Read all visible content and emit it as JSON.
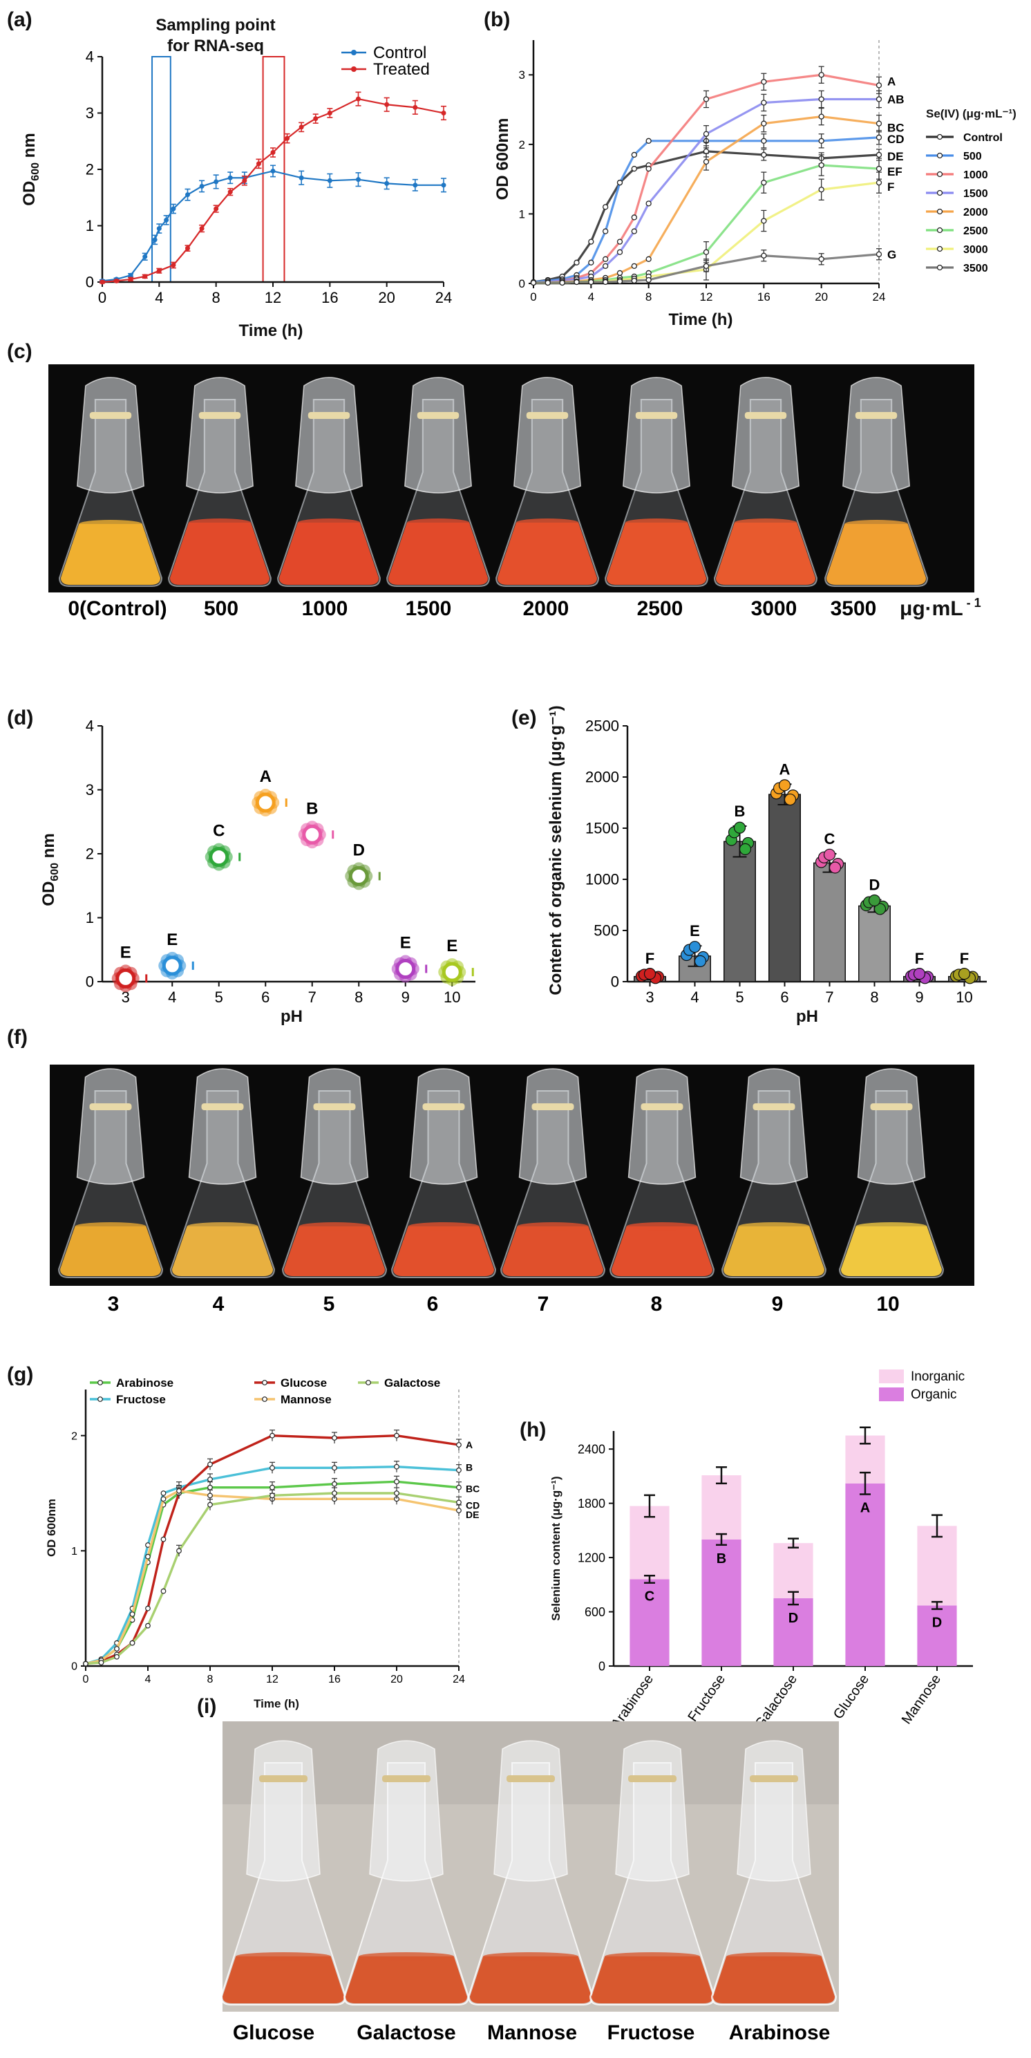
{
  "panels": {
    "a": "(a)",
    "b": "(b)",
    "c": "(c)",
    "d": "(d)",
    "e": "(e)",
    "f": "(f)",
    "g": "(g)",
    "h": "(h)",
    "i": "(i)"
  },
  "colors": {
    "control": "#1f77c4",
    "treated": "#d62728",
    "b_series": [
      "#333333",
      "#4a8ee8",
      "#f47a7a",
      "#8a8af0",
      "#f5a54a",
      "#7fe07f",
      "#f0f07a",
      "#777777"
    ],
    "g_series": [
      "#5cc84a",
      "#4ac0d8",
      "#c0221a",
      "#f5c470",
      "#a8d070"
    ],
    "bar_dark": "#555555",
    "bar_mid": "#777777",
    "bar_light": "#9a9a9a",
    "organic": "#da7ee0",
    "inorganic": "#f9d2ec",
    "d_points": [
      "#d02020",
      "#2a8fd8",
      "#2fa83a",
      "#f5a020",
      "#e85aa8",
      "#6a9a3a",
      "#b040c0",
      "#a8c820"
    ]
  },
  "chart_data": [
    {
      "id": "a",
      "type": "line",
      "title": "Sampling point for RNA-seq",
      "title_lines": [
        "Sampling point",
        "for RNA-seq"
      ],
      "xlabel": "Time (h)",
      "ylabel_main": "OD",
      "ylabel_sub": "600",
      "ylabel_tail": " nm",
      "xlim": [
        0,
        24
      ],
      "ylim": [
        0,
        4
      ],
      "xticks": [
        0,
        4,
        8,
        12,
        16,
        20,
        24
      ],
      "yticks": [
        0,
        1,
        2,
        3,
        4
      ],
      "highlight_windows": [
        [
          3.5,
          4.8
        ],
        [
          11.3,
          12.8
        ]
      ],
      "series": [
        {
          "name": "Control",
          "points": [
            [
              0,
              0.02
            ],
            [
              1,
              0.05
            ],
            [
              2,
              0.12
            ],
            [
              3,
              0.45
            ],
            [
              3.7,
              0.75
            ],
            [
              4,
              0.95
            ],
            [
              4.5,
              1.1
            ],
            [
              5,
              1.3
            ],
            [
              6,
              1.55
            ],
            [
              7,
              1.7
            ],
            [
              8,
              1.78
            ],
            [
              9,
              1.85
            ],
            [
              10,
              1.85
            ],
            [
              12,
              1.97
            ],
            [
              14,
              1.85
            ],
            [
              16,
              1.8
            ],
            [
              18,
              1.82
            ],
            [
              20,
              1.75
            ],
            [
              22,
              1.72
            ],
            [
              24,
              1.72
            ]
          ],
          "errors": [
            0.02,
            0.02,
            0.03,
            0.06,
            0.08,
            0.08,
            0.08,
            0.08,
            0.1,
            0.1,
            0.12,
            0.1,
            0.1,
            0.1,
            0.12,
            0.12,
            0.12,
            0.1,
            0.1,
            0.12
          ]
        },
        {
          "name": "Treated",
          "points": [
            [
              0,
              0.0
            ],
            [
              1,
              0.02
            ],
            [
              2,
              0.05
            ],
            [
              3,
              0.1
            ],
            [
              4,
              0.2
            ],
            [
              5,
              0.3
            ],
            [
              6,
              0.6
            ],
            [
              7,
              0.95
            ],
            [
              8,
              1.3
            ],
            [
              9,
              1.6
            ],
            [
              10,
              1.8
            ],
            [
              11,
              2.1
            ],
            [
              12,
              2.3
            ],
            [
              13,
              2.55
            ],
            [
              14,
              2.75
            ],
            [
              15,
              2.9
            ],
            [
              16,
              3.0
            ],
            [
              18,
              3.25
            ],
            [
              20,
              3.15
            ],
            [
              22,
              3.1
            ],
            [
              24,
              3.0
            ]
          ],
          "errors": [
            0.02,
            0.02,
            0.03,
            0.03,
            0.04,
            0.05,
            0.05,
            0.06,
            0.06,
            0.06,
            0.08,
            0.08,
            0.08,
            0.08,
            0.08,
            0.08,
            0.08,
            0.12,
            0.12,
            0.12,
            0.12
          ]
        }
      ]
    },
    {
      "id": "b",
      "type": "line",
      "xlabel": "Time (h)",
      "ylabel": "OD 600nm",
      "xlim": [
        0,
        24
      ],
      "ylim": [
        0,
        3.5
      ],
      "xticks": [
        0,
        4,
        8,
        12,
        16,
        20,
        24
      ],
      "yticks": [
        0,
        1,
        2,
        3
      ],
      "legend_title": "Se(IV)  (μg·mL⁻¹)",
      "x": [
        0,
        1,
        2,
        3,
        4,
        5,
        6,
        7,
        8,
        12,
        16,
        20,
        24
      ],
      "series": [
        {
          "name": "Control",
          "letter": "DE",
          "values": [
            0.02,
            0.05,
            0.1,
            0.3,
            0.6,
            1.1,
            1.45,
            1.65,
            1.7,
            1.9,
            1.85,
            1.8,
            1.85
          ],
          "err": 0.08
        },
        {
          "name": "500",
          "letter": "CD",
          "values": [
            0.02,
            0.04,
            0.06,
            0.12,
            0.3,
            0.75,
            1.45,
            1.85,
            2.05,
            2.05,
            2.05,
            2.05,
            2.1
          ],
          "err": 0.1
        },
        {
          "name": "1000",
          "letter": "A",
          "values": [
            0.01,
            0.02,
            0.04,
            0.08,
            0.15,
            0.35,
            0.6,
            0.95,
            1.65,
            2.65,
            2.9,
            3.0,
            2.85
          ],
          "err": 0.12
        },
        {
          "name": "1500",
          "letter": "AB",
          "values": [
            0.01,
            0.02,
            0.04,
            0.06,
            0.1,
            0.25,
            0.45,
            0.75,
            1.15,
            2.15,
            2.6,
            2.65,
            2.65
          ],
          "err": 0.12
        },
        {
          "name": "2000",
          "letter": "BC",
          "values": [
            0.01,
            0.01,
            0.02,
            0.03,
            0.05,
            0.08,
            0.15,
            0.25,
            0.35,
            1.75,
            2.3,
            2.4,
            2.3
          ],
          "err": 0.12
        },
        {
          "name": "2500",
          "letter": "EF",
          "values": [
            0.01,
            0.01,
            0.01,
            0.02,
            0.03,
            0.05,
            0.08,
            0.1,
            0.15,
            0.45,
            1.45,
            1.7,
            1.65
          ],
          "err": 0.15
        },
        {
          "name": "3000",
          "letter": "F",
          "values": [
            0.01,
            0.01,
            0.01,
            0.02,
            0.02,
            0.03,
            0.05,
            0.07,
            0.1,
            0.2,
            0.9,
            1.35,
            1.45
          ],
          "err": 0.15
        },
        {
          "name": "3500",
          "letter": "G",
          "values": [
            0.01,
            0.01,
            0.01,
            0.02,
            0.02,
            0.02,
            0.03,
            0.04,
            0.05,
            0.25,
            0.4,
            0.35,
            0.42
          ],
          "err": 0.08
        }
      ]
    },
    {
      "id": "d",
      "type": "scatter",
      "xlabel": "pH",
      "ylabel_main": "OD",
      "ylabel_sub": "600",
      "ylabel_tail": " nm",
      "xlim": [
        2.5,
        10.5
      ],
      "ylim": [
        0,
        4
      ],
      "xticks": [
        3,
        4,
        5,
        6,
        7,
        8,
        9,
        10
      ],
      "yticks": [
        0,
        1,
        2,
        3,
        4
      ],
      "points": [
        {
          "x": 3,
          "y": 0.05,
          "letter": "E"
        },
        {
          "x": 4,
          "y": 0.25,
          "letter": "E"
        },
        {
          "x": 5,
          "y": 1.95,
          "letter": "C"
        },
        {
          "x": 6,
          "y": 2.8,
          "letter": "A"
        },
        {
          "x": 7,
          "y": 2.3,
          "letter": "B"
        },
        {
          "x": 8,
          "y": 1.65,
          "letter": "D"
        },
        {
          "x": 9,
          "y": 0.2,
          "letter": "E"
        },
        {
          "x": 10,
          "y": 0.15,
          "letter": "E"
        }
      ]
    },
    {
      "id": "e",
      "type": "bar",
      "xlabel": "pH",
      "ylabel": "Content of organic selenium (μg·g⁻¹)",
      "ylim": [
        0,
        2500
      ],
      "yticks": [
        0,
        500,
        1000,
        1500,
        2000,
        2500
      ],
      "categories": [
        "3",
        "4",
        "5",
        "6",
        "7",
        "8",
        "9",
        "10"
      ],
      "values": [
        50,
        250,
        1370,
        1830,
        1160,
        740,
        50,
        50
      ],
      "errors": [
        30,
        100,
        150,
        100,
        90,
        60,
        30,
        30
      ],
      "letters": [
        "F",
        "E",
        "B",
        "A",
        "C",
        "D",
        "F",
        "F"
      ]
    },
    {
      "id": "g",
      "type": "line",
      "xlabel": "Time (h)",
      "ylabel": "OD 600nm",
      "xlim": [
        0,
        24
      ],
      "ylim": [
        0,
        2.4
      ],
      "xticks": [
        0,
        4,
        8,
        12,
        16,
        20,
        24
      ],
      "yticks": [
        0,
        1,
        2
      ],
      "x": [
        0,
        1,
        2,
        3,
        4,
        5,
        6,
        8,
        12,
        16,
        20,
        24
      ],
      "series": [
        {
          "name": "Arabinose",
          "letter": "BC",
          "values": [
            0.02,
            0.05,
            0.15,
            0.4,
            0.9,
            1.4,
            1.5,
            1.55,
            1.55,
            1.58,
            1.6,
            1.55
          ]
        },
        {
          "name": "Fructose",
          "letter": "B",
          "values": [
            0.02,
            0.06,
            0.2,
            0.5,
            1.05,
            1.5,
            1.55,
            1.62,
            1.72,
            1.72,
            1.73,
            1.7
          ]
        },
        {
          "name": "Glucose",
          "letter": "A",
          "values": [
            0.02,
            0.04,
            0.1,
            0.2,
            0.5,
            1.1,
            1.5,
            1.75,
            2.0,
            1.98,
            2.0,
            1.92
          ]
        },
        {
          "name": "Mannose",
          "letter": "DE",
          "values": [
            0.02,
            0.05,
            0.15,
            0.45,
            0.95,
            1.45,
            1.52,
            1.48,
            1.45,
            1.45,
            1.45,
            1.35
          ]
        },
        {
          "name": "Galactose",
          "letter": "CD",
          "values": [
            0.02,
            0.03,
            0.08,
            0.2,
            0.35,
            0.65,
            1.0,
            1.4,
            1.48,
            1.5,
            1.5,
            1.42
          ]
        }
      ],
      "legend_order": [
        "Arabinose",
        "Fructose",
        "Glucose",
        "Mannose",
        "Galactose"
      ]
    },
    {
      "id": "h",
      "type": "bar",
      "stacked": true,
      "ylabel": "Selenium content (μg·g⁻¹)",
      "ylim": [
        0,
        2600
      ],
      "yticks": [
        0,
        600,
        1200,
        1800,
        2400
      ],
      "categories": [
        "Arabinose",
        "Fructose",
        "Galactose",
        "Glucose",
        "Mannose"
      ],
      "series": [
        {
          "name": "Organic",
          "values": [
            960,
            1400,
            750,
            2020,
            670
          ],
          "errors": [
            40,
            60,
            70,
            120,
            40
          ]
        },
        {
          "name": "Inorganic",
          "values": [
            810,
            710,
            610,
            530,
            880
          ],
          "errors": [
            120,
            90,
            50,
            90,
            120
          ]
        }
      ],
      "letters": [
        "C",
        "B",
        "D",
        "A",
        "D"
      ],
      "legend": [
        "Inorganic",
        "Organic"
      ]
    }
  ],
  "photo_c": {
    "labels": [
      "0(Control)",
      "500",
      "1000",
      "1500",
      "2000",
      "2500",
      "3000",
      "3500"
    ],
    "unit": "μg·mL",
    "unit_sup": " - 1"
  },
  "photo_f": {
    "labels": [
      "3",
      "4",
      "5",
      "6",
      "7",
      "8",
      "9",
      "10"
    ]
  },
  "photo_i": {
    "labels": [
      "Glucose",
      "Galactose",
      "Mannose",
      "Fructose",
      "Arabinose"
    ]
  }
}
